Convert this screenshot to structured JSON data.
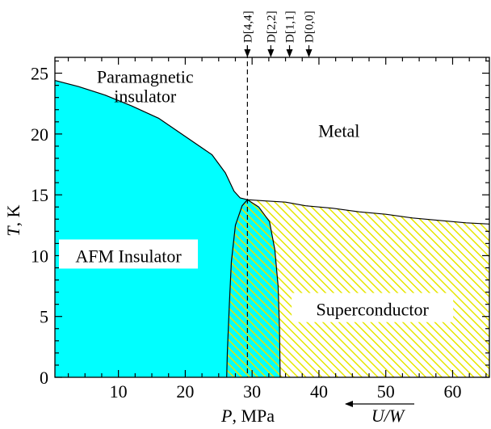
{
  "chart_data": {
    "type": "area",
    "title": "",
    "xlabel": {
      "italic": "P",
      "rest": ", MPa"
    },
    "ylabel": {
      "italic": "T",
      "rest": ", K"
    },
    "xlim": [
      0.5,
      65.5
    ],
    "ylim": [
      0,
      26.3
    ],
    "xticks": [
      10,
      20,
      30,
      40,
      50,
      60
    ],
    "yticks": [
      0,
      5,
      10,
      15,
      20,
      25
    ],
    "grid": false,
    "colors": {
      "afm": "#00FFFF",
      "sc_hatch": "#E6E600",
      "line": "#000000"
    },
    "boundaries": {
      "afm_boundary": [
        [
          0.5,
          24.4
        ],
        [
          4,
          23.9
        ],
        [
          8,
          23.2
        ],
        [
          12,
          22.3
        ],
        [
          16,
          21.3
        ],
        [
          20,
          19.8
        ],
        [
          24,
          18.3
        ],
        [
          26,
          16.8
        ],
        [
          27.3,
          15.3
        ],
        [
          28.2,
          14.75
        ],
        [
          29.3,
          14.6
        ]
      ],
      "metal_sc_boundary": [
        [
          29.3,
          14.6
        ],
        [
          32,
          14.5
        ],
        [
          35,
          14.4
        ],
        [
          38,
          14.1
        ],
        [
          42,
          13.9
        ],
        [
          46,
          13.6
        ],
        [
          50,
          13.4
        ],
        [
          54,
          13.1
        ],
        [
          58,
          12.9
        ],
        [
          62,
          12.7
        ],
        [
          65.5,
          12.6
        ]
      ],
      "afm_sc_left_boundary": [
        [
          26.2,
          0
        ],
        [
          26.3,
          2
        ],
        [
          26.6,
          6
        ],
        [
          26.9,
          9.5
        ],
        [
          27.5,
          12.5
        ],
        [
          28.5,
          14.1
        ],
        [
          29.3,
          14.6
        ]
      ],
      "sc_right_boundary": [
        [
          29.3,
          14.6
        ],
        [
          31,
          14.0
        ],
        [
          32.6,
          12.8
        ],
        [
          33.4,
          10.5
        ],
        [
          33.9,
          7.5
        ],
        [
          34.1,
          4
        ],
        [
          34.2,
          0
        ]
      ]
    },
    "regions": [
      {
        "name": "paramagnetic-insulator",
        "label_lines": [
          "Paramagnetic",
          "insulator"
        ],
        "x": 14,
        "y": 24
      },
      {
        "name": "metal",
        "label_lines": [
          "Metal"
        ],
        "x": 43,
        "y": 20.3
      },
      {
        "name": "afm-insulator",
        "label_lines": [
          "AFM Insulator"
        ],
        "x": 11.5,
        "y": 10
      },
      {
        "name": "superconductor",
        "label_lines": [
          "Superconductor"
        ],
        "x": 48,
        "y": 5.6
      }
    ],
    "vertical_line": {
      "x": 29.3,
      "style": "dashed"
    },
    "markers": [
      {
        "label": "D[4,4]",
        "x": 29.3
      },
      {
        "label": "D[2,2]",
        "x": 32.8
      },
      {
        "label": "D[1,1]",
        "x": 35.6
      },
      {
        "label": "D[0,0]",
        "x": 38.5
      }
    ],
    "arrow_label": "U/W",
    "arrow_direction": "left"
  }
}
